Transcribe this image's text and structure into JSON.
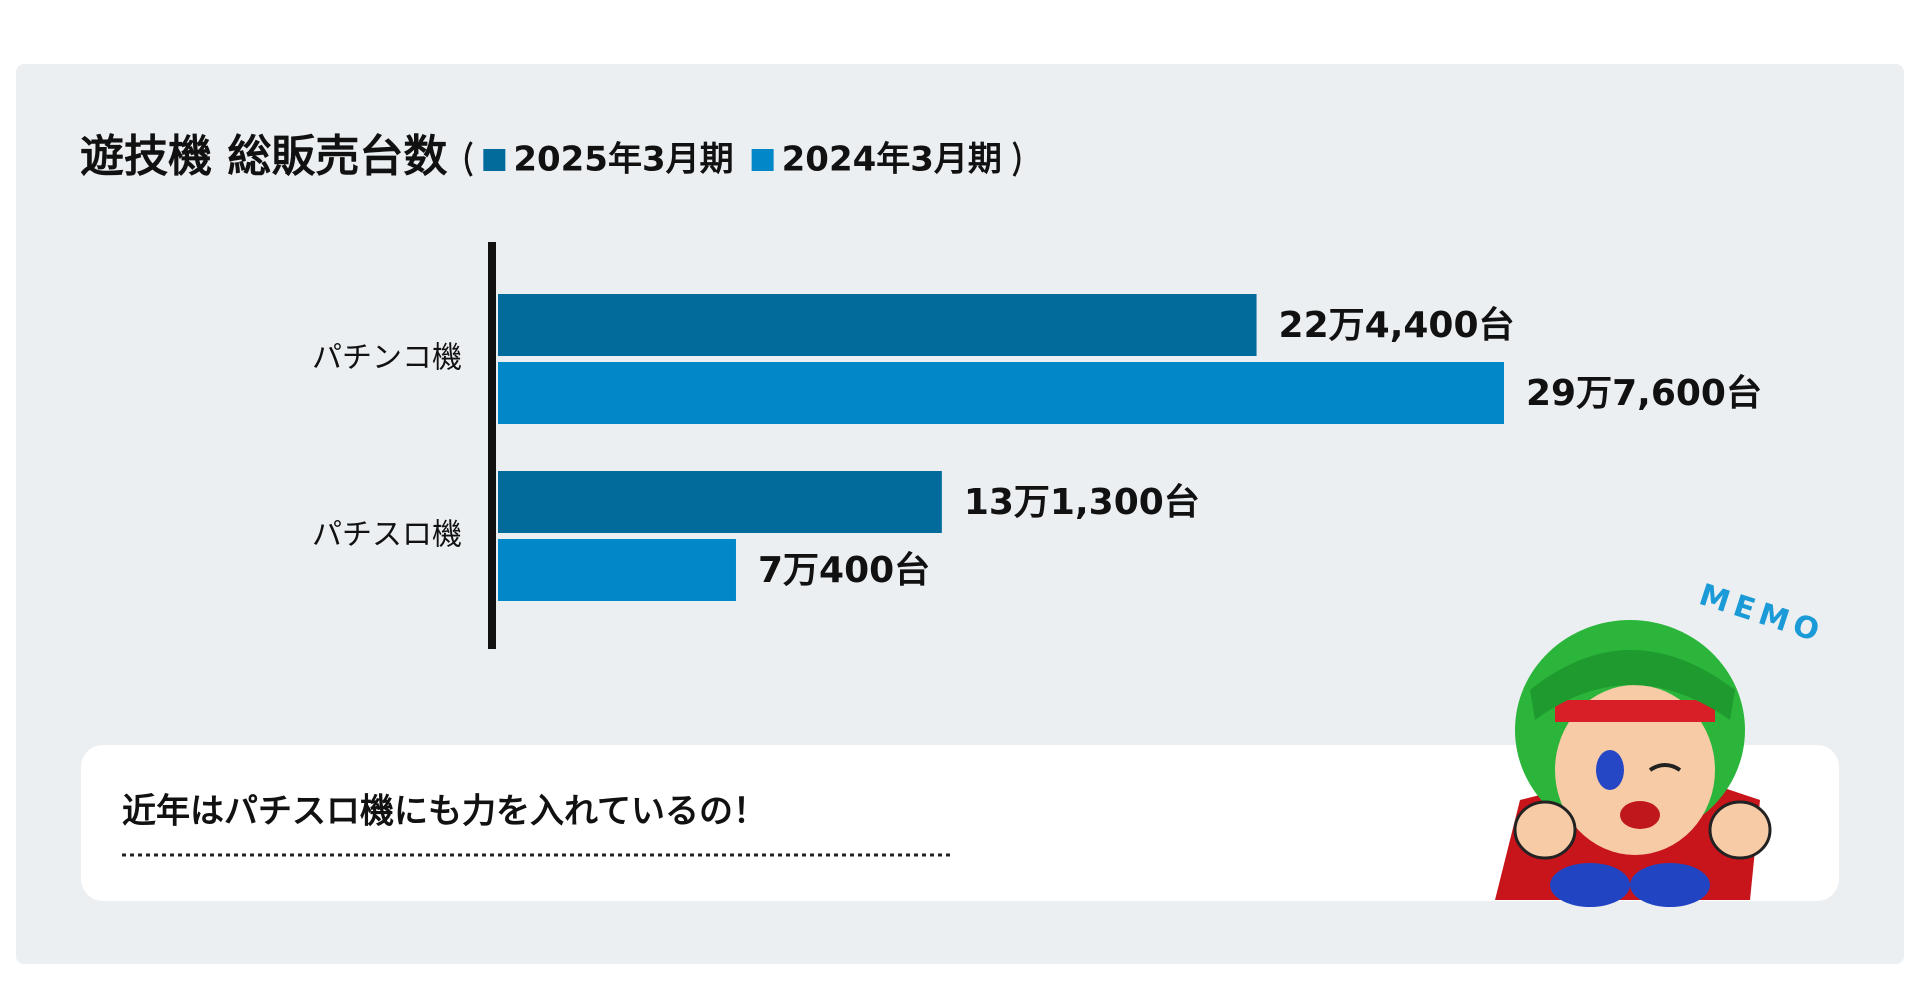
{
  "chart_data": {
    "type": "bar",
    "orientation": "horizontal",
    "title": "遊技機 総販売台数",
    "categories": [
      "パチンコ機",
      "パチスロ機"
    ],
    "series": [
      {
        "name": "2025年3月期",
        "color": "#036a9c",
        "values": [
          224400,
          131300
        ],
        "value_labels": [
          "22万4,400台",
          "13万1,300台"
        ]
      },
      {
        "name": "2024年3月期",
        "color": "#0288c8",
        "values": [
          297600,
          70400
        ],
        "value_labels": [
          "29万7,600台",
          "7万400台"
        ]
      }
    ],
    "annotation": "近年はパチスロ機にも力を入れているの！",
    "badge": "MEMO"
  }
}
